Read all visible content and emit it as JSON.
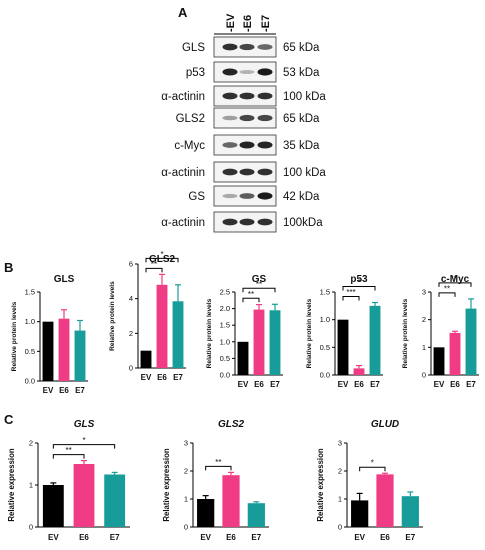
{
  "panels": {
    "a": "A",
    "b": "B",
    "c": "C"
  },
  "blot": {
    "lanes": [
      "EV",
      "E6",
      "E7"
    ],
    "rows": [
      {
        "protein": "GLS",
        "kda": "65 kDa",
        "intensity": [
          0.85,
          0.75,
          0.6
        ]
      },
      {
        "protein": "p53",
        "kda": "53 kDa",
        "intensity": [
          0.9,
          0.25,
          0.95
        ]
      },
      {
        "protein": "α-actinin",
        "kda": "100 kDa",
        "intensity": [
          0.85,
          0.85,
          0.85
        ]
      },
      {
        "protein": "GLS2",
        "kda": "65 kDa",
        "intensity": [
          0.35,
          0.75,
          0.75
        ]
      },
      {
        "protein": "c-Myc",
        "kda": "35 kDa",
        "intensity": [
          0.6,
          0.9,
          0.9
        ]
      },
      {
        "protein": "α-actinin",
        "kda": "100 kDa",
        "intensity": [
          0.85,
          0.85,
          0.85
        ]
      },
      {
        "protein": "GS",
        "kda": "42 kDa",
        "intensity": [
          0.3,
          0.65,
          0.95
        ]
      },
      {
        "protein": "α-actinin",
        "kda": "100kDa",
        "intensity": [
          0.85,
          0.85,
          0.85
        ]
      }
    ]
  },
  "colors": {
    "EV": "#000000",
    "E6": "#f03c84",
    "E7": "#179c9a"
  },
  "chart_data": [
    {
      "panel": "B",
      "type": "bar",
      "title": "GLS",
      "ylabel": "Relative protein levels",
      "categories": [
        "EV",
        "E6",
        "E7"
      ],
      "values": [
        1.0,
        1.05,
        0.85
      ],
      "errors": [
        0,
        0.15,
        0.17
      ],
      "ylim": [
        0,
        1.5
      ],
      "yticks": [
        "0.0",
        "0.5",
        "1.0",
        "1.5"
      ],
      "sig": []
    },
    {
      "panel": "B",
      "type": "bar",
      "title": "GLS2",
      "ylabel": "Relative protein levels",
      "categories": [
        "EV",
        "E6",
        "E7"
      ],
      "values": [
        1.0,
        4.8,
        3.85
      ],
      "errors": [
        0,
        0.6,
        0.95
      ],
      "ylim": [
        0,
        6
      ],
      "yticks": [
        "0",
        "2",
        "4",
        "6"
      ],
      "sig": [
        {
          "label": "*",
          "from": "EV",
          "to": "E7"
        },
        {
          "label": "**",
          "from": "EV",
          "to": "E6"
        }
      ]
    },
    {
      "panel": "B",
      "type": "bar",
      "title": "GS",
      "ylabel": "Relative protein levels",
      "categories": [
        "EV",
        "E6",
        "E7"
      ],
      "values": [
        1.0,
        1.97,
        1.95
      ],
      "errors": [
        0,
        0.15,
        0.18
      ],
      "ylim": [
        0,
        2.5
      ],
      "yticks": [
        "0.0",
        "0.5",
        "1.0",
        "1.5",
        "2.0",
        "2.5"
      ],
      "sig": [
        {
          "label": "**",
          "from": "EV",
          "to": "E7"
        },
        {
          "label": "**",
          "from": "EV",
          "to": "E6"
        }
      ]
    },
    {
      "panel": "B",
      "type": "bar",
      "title": "p53",
      "ylabel": "Relative protein levels",
      "categories": [
        "EV",
        "E6",
        "E7"
      ],
      "values": [
        1.0,
        0.12,
        1.25
      ],
      "errors": [
        0,
        0.05,
        0.06
      ],
      "ylim": [
        0,
        1.5
      ],
      "yticks": [
        "0.0",
        "0.5",
        "1.0",
        "1.5"
      ],
      "sig": [
        {
          "label": "*",
          "from": "EV",
          "to": "E7"
        },
        {
          "label": "***",
          "from": "EV",
          "to": "E6"
        }
      ]
    },
    {
      "panel": "B",
      "type": "bar",
      "title": "c-Myc",
      "ylabel": "Relative protein levels",
      "categories": [
        "EV",
        "E6",
        "E7"
      ],
      "values": [
        1.0,
        1.52,
        2.4
      ],
      "errors": [
        0,
        0.06,
        0.35
      ],
      "ylim": [
        0,
        3
      ],
      "yticks": [
        "0",
        "1",
        "2",
        "3"
      ],
      "sig": [
        {
          "label": "*",
          "from": "EV",
          "to": "E7"
        },
        {
          "label": "**",
          "from": "EV",
          "to": "E6"
        }
      ]
    },
    {
      "panel": "C",
      "type": "bar",
      "title": "GLS",
      "ylabel": "Relative expression",
      "categories": [
        "EV",
        "E6",
        "E7"
      ],
      "values": [
        1.0,
        1.5,
        1.25
      ],
      "errors": [
        0.05,
        0.08,
        0.05
      ],
      "ylim": [
        0,
        2
      ],
      "yticks": [
        "0",
        "1",
        "2"
      ],
      "sig": [
        {
          "label": "*",
          "from": "EV",
          "to": "E7"
        },
        {
          "label": "**",
          "from": "EV",
          "to": "E6"
        }
      ]
    },
    {
      "panel": "C",
      "type": "bar",
      "title": "GLS2",
      "ylabel": "Relative expression",
      "categories": [
        "EV",
        "E6",
        "E7"
      ],
      "values": [
        1.0,
        1.85,
        0.85
      ],
      "errors": [
        0.12,
        0.1,
        0.05
      ],
      "ylim": [
        0,
        3
      ],
      "yticks": [
        "0",
        "1",
        "2",
        "3"
      ],
      "sig": [
        {
          "label": "**",
          "from": "EV",
          "to": "E6"
        }
      ]
    },
    {
      "panel": "C",
      "type": "bar",
      "title": "GLUD",
      "ylabel": "Relative expression",
      "categories": [
        "EV",
        "E6",
        "E7"
      ],
      "values": [
        0.95,
        1.88,
        1.1
      ],
      "errors": [
        0.25,
        0.04,
        0.15
      ],
      "ylim": [
        0,
        3
      ],
      "yticks": [
        "0",
        "1",
        "2",
        "3"
      ],
      "sig": [
        {
          "label": "*",
          "from": "EV",
          "to": "E6"
        }
      ]
    }
  ]
}
